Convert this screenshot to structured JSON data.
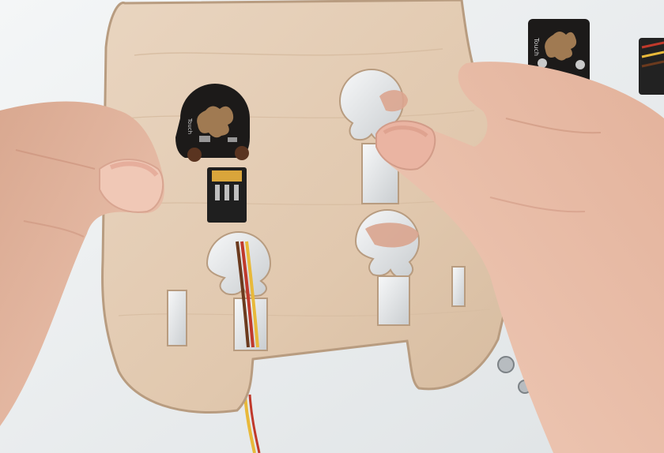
{
  "photo": {
    "subject": "laser-cut-wooden-board-with-touch-sensor-module",
    "colors": {
      "background": "#eceff1",
      "plywood": "#e2cbb3",
      "plywood_edge": "#b89c80",
      "skin": "#e7b9a3",
      "skin_shadow": "#c98f79",
      "pcb": "#1c1a19",
      "touch_pad": "#a07a52",
      "wire_brown": "#6b3a1e",
      "wire_red": "#c0392b",
      "wire_yellow": "#e8b93a"
    }
  },
  "modules": {
    "board_touch_label": "Touch",
    "side_touch_label": "Touch"
  }
}
